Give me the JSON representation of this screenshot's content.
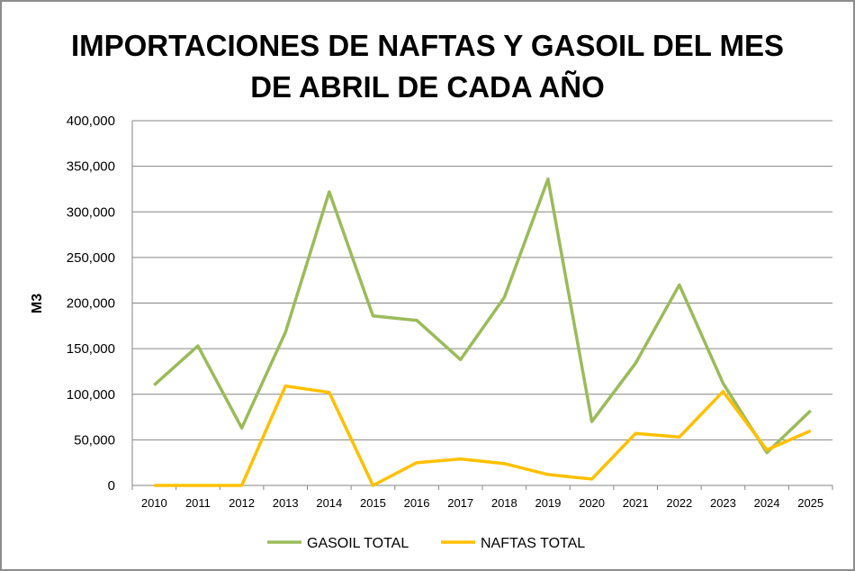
{
  "chart_data": {
    "type": "line",
    "title_line1": "IMPORTACIONES DE NAFTAS Y GASOIL DEL MES",
    "title_line2": "DE ABRIL DE CADA AÑO",
    "xlabel": "",
    "ylabel": "M3",
    "ylim": [
      0,
      400000
    ],
    "yticks": [
      "0",
      "50,000",
      "100,000",
      "150,000",
      "200,000",
      "250,000",
      "300,000",
      "350,000",
      "400,000"
    ],
    "categories": [
      "2010",
      "2011",
      "2012",
      "2013",
      "2014",
      "2015",
      "2016",
      "2017",
      "2018",
      "2019",
      "2020",
      "2021",
      "2022",
      "2023",
      "2024",
      "2025"
    ],
    "grid": true,
    "legend_position": "bottom",
    "series": [
      {
        "name": "GASOIL TOTAL",
        "color": "#9bbb59",
        "values": [
          110000,
          153000,
          63000,
          168000,
          322000,
          186000,
          181000,
          138000,
          206000,
          336000,
          70000,
          134000,
          220000,
          112000,
          36000,
          82000
        ]
      },
      {
        "name": "NAFTAS TOTAL",
        "color": "#ffc000",
        "values": [
          0,
          0,
          0,
          109000,
          102000,
          0,
          25000,
          29000,
          24000,
          12000,
          7000,
          57000,
          53000,
          103000,
          39000,
          60000
        ]
      }
    ]
  }
}
